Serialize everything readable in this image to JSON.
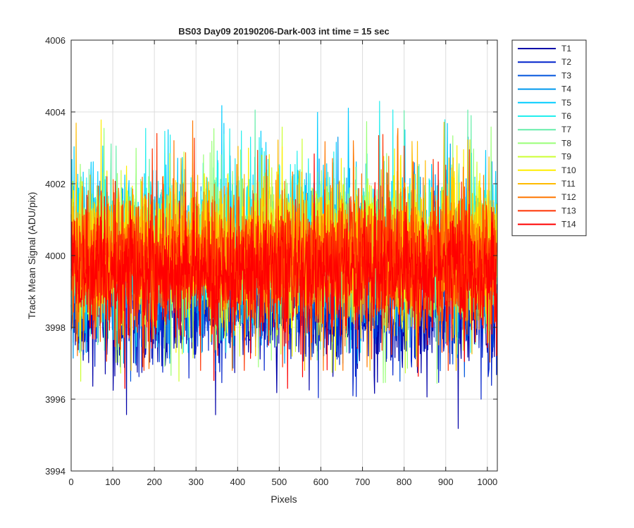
{
  "chart_data": {
    "type": "line",
    "title": "BS03 Day09 20190206-Dark-003 int time = 15 sec",
    "xlabel": "Pixels",
    "ylabel": "Track Mean Signal (ADU/pix)",
    "xlim": [
      0,
      1024
    ],
    "ylim": [
      3994,
      4006
    ],
    "xticks": [
      0,
      100,
      200,
      300,
      400,
      500,
      600,
      700,
      800,
      900,
      1000
    ],
    "yticks": [
      3994,
      3996,
      3998,
      4000,
      4002,
      4004,
      4006
    ],
    "grid": true,
    "legend_position": "outside-top-right",
    "n_points": 1024,
    "series": [
      {
        "name": "T1",
        "color": "#0000a8",
        "mean": 3998.6,
        "std": 0.9,
        "min": 3994.5,
        "max": 4000.8
      },
      {
        "name": "T2",
        "color": "#0022cc",
        "mean": 3998.9,
        "std": 0.8,
        "min": 3996.0,
        "max": 4001.0
      },
      {
        "name": "T3",
        "color": "#0055dd",
        "mean": 3999.3,
        "std": 0.85,
        "min": 3996.5,
        "max": 4001.8
      },
      {
        "name": "T4",
        "color": "#0099ee",
        "mean": 3999.8,
        "std": 0.95,
        "min": 3997.0,
        "max": 4003.3
      },
      {
        "name": "T5",
        "color": "#00ccff",
        "mean": 4000.3,
        "std": 1.0,
        "min": 3997.3,
        "max": 4005.4
      },
      {
        "name": "T6",
        "color": "#22eeee",
        "mean": 4000.4,
        "std": 1.0,
        "min": 3997.3,
        "max": 4004.9
      },
      {
        "name": "T7",
        "color": "#66eeaa",
        "mean": 4000.3,
        "std": 0.95,
        "min": 3997.0,
        "max": 4004.5
      },
      {
        "name": "T8",
        "color": "#99ff77",
        "mean": 4000.2,
        "std": 0.95,
        "min": 3996.2,
        "max": 4004.5
      },
      {
        "name": "T9",
        "color": "#ccff33",
        "mean": 4000.0,
        "std": 0.95,
        "min": 3996.5,
        "max": 4004.2
      },
      {
        "name": "T10",
        "color": "#ffee00",
        "mean": 4000.1,
        "std": 0.95,
        "min": 3996.8,
        "max": 4004.8
      },
      {
        "name": "T11",
        "color": "#ffbb00",
        "mean": 4000.1,
        "std": 0.95,
        "min": 3996.8,
        "max": 4004.6
      },
      {
        "name": "T12",
        "color": "#ff7700",
        "mean": 4000.0,
        "std": 0.95,
        "min": 3996.8,
        "max": 4004.3
      },
      {
        "name": "T13",
        "color": "#ff3300",
        "mean": 3999.8,
        "std": 0.9,
        "min": 3996.8,
        "max": 4003.5
      },
      {
        "name": "T14",
        "color": "#ff0000",
        "mean": 3999.5,
        "std": 0.85,
        "min": 3996.3,
        "max": 4003.0
      }
    ]
  }
}
